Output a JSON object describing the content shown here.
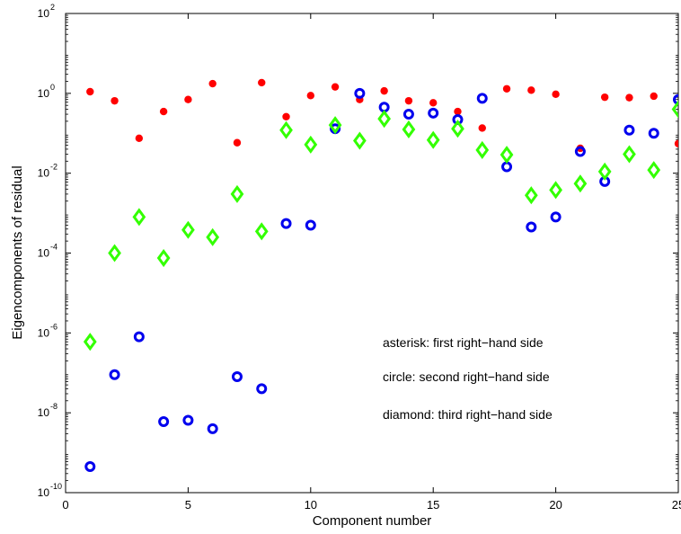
{
  "chart_data": {
    "type": "scatter",
    "title": "",
    "xlabel": "Component number",
    "ylabel": "Eigencomponents of residual",
    "xlim": [
      0,
      25
    ],
    "ylim": [
      1e-10,
      100
    ],
    "yscale": "log",
    "grid": false,
    "xticks": [
      0,
      5,
      10,
      15,
      20,
      25
    ],
    "xtick_labels": [
      "0",
      "5",
      "10",
      "15",
      "20",
      "25"
    ],
    "yticks": [
      {
        "value": 1e-10,
        "base": "10",
        "exp": "-10"
      },
      {
        "value": 1e-08,
        "base": "10",
        "exp": "-8"
      },
      {
        "value": 1e-06,
        "base": "10",
        "exp": "-6"
      },
      {
        "value": 0.0001,
        "base": "10",
        "exp": "-4"
      },
      {
        "value": 0.01,
        "base": "10",
        "exp": "-2"
      },
      {
        "value": 1,
        "base": "10",
        "exp": "0"
      },
      {
        "value": 100,
        "base": "10",
        "exp": "2"
      }
    ],
    "annotations": [
      "asterisk:  first right−hand side",
      "circle:  second right−hand side",
      "diamond:  third right−hand side"
    ],
    "series": [
      {
        "marker": "asterisk",
        "color": "#ff0000",
        "x": [
          1,
          2,
          3,
          4,
          5,
          6,
          7,
          8,
          9,
          10,
          11,
          12,
          13,
          14,
          15,
          16,
          17,
          18,
          19,
          20,
          21,
          22,
          23,
          24,
          25
        ],
        "y": [
          1.1,
          0.65,
          0.075,
          0.35,
          0.7,
          1.75,
          0.058,
          1.85,
          0.26,
          0.88,
          1.45,
          0.7,
          1.15,
          0.65,
          0.58,
          0.35,
          0.135,
          1.3,
          1.2,
          0.95,
          0.042,
          0.8,
          0.78,
          0.85,
          0.055
        ]
      },
      {
        "marker": "circle",
        "color": "#0000ee",
        "x": [
          1,
          2,
          3,
          4,
          5,
          6,
          7,
          8,
          9,
          10,
          11,
          12,
          13,
          14,
          15,
          16,
          17,
          18,
          19,
          20,
          21,
          22,
          23,
          24,
          25
        ],
        "y": [
          4.5e-10,
          9e-08,
          8e-07,
          6e-09,
          6.5e-09,
          4e-09,
          8e-08,
          4e-08,
          0.00055,
          0.0005,
          0.13,
          1.0,
          0.45,
          0.3,
          0.32,
          0.22,
          0.75,
          0.0145,
          0.00045,
          0.0008,
          0.035,
          0.0062,
          0.12,
          0.1,
          0.7
        ]
      },
      {
        "marker": "diamond",
        "color": "#33ff00",
        "x": [
          1,
          2,
          3,
          4,
          5,
          6,
          7,
          8,
          9,
          10,
          11,
          12,
          13,
          14,
          15,
          16,
          17,
          18,
          19,
          20,
          21,
          22,
          23,
          24,
          25
        ],
        "y": [
          6e-07,
          0.0001,
          0.0008,
          7.5e-05,
          0.00038,
          0.00025,
          0.003,
          0.00035,
          0.12,
          0.052,
          0.16,
          0.065,
          0.23,
          0.125,
          0.068,
          0.13,
          0.038,
          0.029,
          0.0028,
          0.0038,
          0.0055,
          0.011,
          0.03,
          0.012,
          0.4
        ]
      }
    ]
  }
}
